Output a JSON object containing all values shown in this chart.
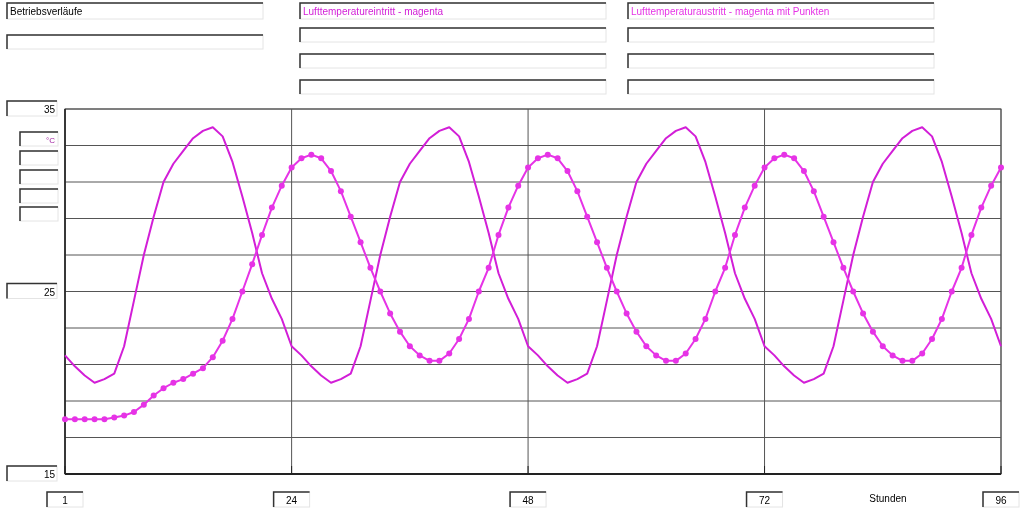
{
  "chart_data": {
    "type": "line",
    "title": "Betriebsverläufe",
    "xlabel": "Stunden",
    "ylabel": "°C",
    "legend": "top",
    "grid": true,
    "xlim": [
      1,
      96
    ],
    "xticks": [
      1,
      24,
      48,
      72,
      96
    ],
    "ylim": [
      15,
      35
    ],
    "yticks": [
      15,
      {
        "value": 17,
        "label": null
      },
      {
        "value": 19,
        "label": null
      },
      {
        "value": 21,
        "label": null
      },
      {
        "value": 23,
        "label": null
      },
      25,
      {
        "value": 27,
        "label": null
      },
      {
        "value": 29,
        "label": null
      },
      {
        "value": 31,
        "label": null
      },
      {
        "value": 33,
        "label": null
      },
      35
    ],
    "series": [
      {
        "name": "Lufttemperatureintritt - magenta",
        "color": "#d21ed7",
        "marker": "none",
        "x": [
          1,
          2,
          3,
          4,
          5,
          6,
          7,
          8,
          9,
          10,
          11,
          12,
          13,
          14,
          15,
          16,
          17,
          18,
          19,
          20,
          21,
          22,
          23,
          24,
          25,
          26,
          27,
          28,
          29,
          30,
          31,
          32,
          33,
          34,
          35,
          36,
          37,
          38,
          39,
          40,
          41,
          42,
          43,
          44,
          45,
          46,
          47,
          48,
          49,
          50,
          51,
          52,
          53,
          54,
          55,
          56,
          57,
          58,
          59,
          60,
          61,
          62,
          63,
          64,
          65,
          66,
          67,
          68,
          69,
          70,
          71,
          72,
          73,
          74,
          75,
          76,
          77,
          78,
          79,
          80,
          81,
          82,
          83,
          84,
          85,
          86,
          87,
          88,
          89,
          90,
          91,
          92,
          93,
          94,
          95,
          96
        ],
        "values": [
          21.5,
          20.9,
          20.4,
          20.0,
          20.2,
          20.5,
          22.0,
          24.5,
          27.0,
          29.1,
          31.0,
          32.0,
          32.7,
          33.4,
          33.8,
          34.0,
          33.5,
          32.1,
          30.2,
          28.2,
          26.0,
          24.6,
          23.5,
          22.0,
          21.5,
          20.9,
          20.4,
          20.0,
          20.2,
          20.5,
          22.0,
          24.5,
          27.0,
          29.1,
          31.0,
          32.0,
          32.7,
          33.4,
          33.8,
          34.0,
          33.5,
          32.1,
          30.2,
          28.2,
          26.0,
          24.6,
          23.5,
          22.0,
          21.5,
          20.9,
          20.4,
          20.0,
          20.2,
          20.5,
          22.0,
          24.5,
          27.0,
          29.1,
          31.0,
          32.0,
          32.7,
          33.4,
          33.8,
          34.0,
          33.5,
          32.1,
          30.2,
          28.2,
          26.0,
          24.6,
          23.5,
          22.0,
          21.5,
          20.9,
          20.4,
          20.0,
          20.2,
          20.5,
          22.0,
          24.5,
          27.0,
          29.1,
          31.0,
          32.0,
          32.7,
          33.4,
          33.8,
          34.0,
          33.5,
          32.1,
          30.2,
          28.2,
          26.0,
          24.6,
          23.5,
          22.0
        ]
      },
      {
        "name": "Lufttemperaturaustritt - magenta mit Punkten",
        "color": "#e633e6",
        "marker": "circle",
        "x": [
          1,
          2,
          3,
          4,
          5,
          6,
          7,
          8,
          9,
          10,
          11,
          12,
          13,
          14,
          15,
          16,
          17,
          18,
          19,
          20,
          21,
          22,
          23,
          24,
          25,
          26,
          27,
          28,
          29,
          30,
          31,
          32,
          33,
          34,
          35,
          36,
          37,
          38,
          39,
          40,
          41,
          42,
          43,
          44,
          45,
          46,
          47,
          48,
          49,
          50,
          51,
          52,
          53,
          54,
          55,
          56,
          57,
          58,
          59,
          60,
          61,
          62,
          63,
          64,
          65,
          66,
          67,
          68,
          69,
          70,
          71,
          72,
          73,
          74,
          75,
          76,
          77,
          78,
          79,
          80,
          81,
          82,
          83,
          84,
          85,
          86,
          87,
          88,
          89,
          90,
          91,
          92,
          93,
          94,
          95,
          96
        ],
        "values": [
          18.0,
          18.0,
          18.0,
          18.0,
          18.0,
          18.1,
          18.2,
          18.4,
          18.8,
          19.3,
          19.7,
          20.0,
          20.2,
          20.5,
          20.8,
          21.4,
          22.3,
          23.5,
          25.0,
          26.5,
          28.1,
          29.6,
          30.8,
          31.8,
          32.3,
          32.5,
          32.3,
          31.6,
          30.5,
          29.1,
          27.7,
          26.3,
          25.0,
          23.8,
          22.8,
          22.0,
          21.5,
          21.2,
          21.2,
          21.6,
          22.4,
          23.5,
          25.0,
          26.3,
          28.1,
          29.6,
          30.8,
          31.8,
          32.3,
          32.5,
          32.3,
          31.6,
          30.5,
          29.1,
          27.7,
          26.3,
          25.0,
          23.8,
          22.8,
          22.0,
          21.5,
          21.2,
          21.2,
          21.6,
          22.4,
          23.5,
          25.0,
          26.3,
          28.1,
          29.6,
          30.8,
          31.8,
          32.3,
          32.5,
          32.3,
          31.6,
          30.5,
          29.1,
          27.7,
          26.3,
          25.0,
          23.8,
          22.8,
          22.0,
          21.5,
          21.2,
          21.2,
          21.6,
          22.4,
          23.5,
          25.0,
          26.3,
          28.1,
          29.6,
          30.8,
          31.8
        ]
      }
    ]
  }
}
